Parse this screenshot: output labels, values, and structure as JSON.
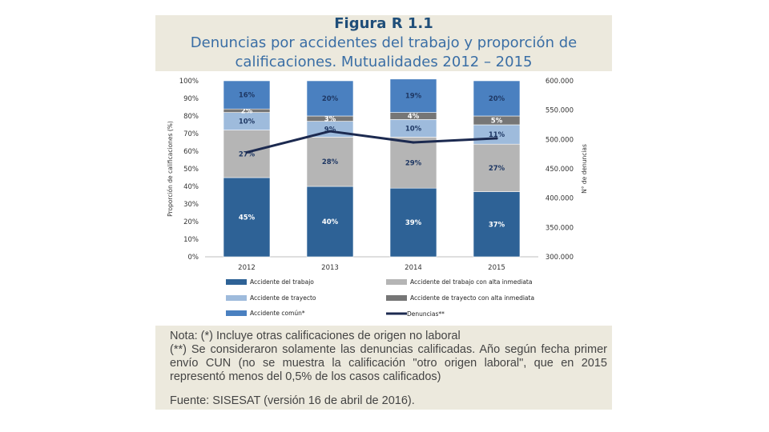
{
  "figure": {
    "label": "Figura R 1.1",
    "title": "Denuncias por accidentes del trabajo y proporción de calificaciones. Mutualidades 2012 – 2015"
  },
  "chart_data": {
    "type": "bar",
    "stacked": true,
    "categories": [
      "2012",
      "2013",
      "2014",
      "2015"
    ],
    "series": [
      {
        "name": "Accidente del trabajo",
        "color": "#2e6296",
        "values": [
          45,
          40,
          39,
          37
        ],
        "labels": [
          "45%",
          "40%",
          "39%",
          "37%"
        ]
      },
      {
        "name": "Accidente del trabajo con alta inmediata",
        "color": "#b5b5b5",
        "values": [
          27,
          28,
          29,
          27
        ],
        "labels": [
          "27%",
          "28%",
          "29%",
          "27%"
        ]
      },
      {
        "name": "Accidente de trayecto",
        "color": "#9ebbdc",
        "values": [
          10,
          9,
          10,
          11
        ],
        "labels": [
          "10%",
          "9%",
          "10%",
          "11%"
        ]
      },
      {
        "name": "Accidente de trayecto con alta inmediata",
        "color": "#767676",
        "values": [
          2,
          3,
          4,
          5
        ],
        "labels": [
          "2%",
          "3%",
          "4%",
          "5%"
        ]
      },
      {
        "name": "Accidente común*",
        "color": "#4a80c0",
        "values": [
          16,
          20,
          19,
          20
        ],
        "labels": [
          "16%",
          "20%",
          "19%",
          "20%"
        ]
      }
    ],
    "line_series": {
      "name": "Denuncias**",
      "color": "#1c2a50",
      "axis": "right",
      "values": [
        478000,
        514000,
        495000,
        502000
      ]
    },
    "ylabel": "Proporción de calificaciones (%)",
    "ylabel_right": "N° de denuncias",
    "ylim": [
      0,
      100
    ],
    "ylim_right": [
      300000,
      600000
    ],
    "yticks": [
      "0%",
      "10%",
      "20%",
      "30%",
      "40%",
      "50%",
      "60%",
      "70%",
      "80%",
      "90%",
      "100%"
    ],
    "yticks_right": [
      "300.000",
      "350.000",
      "400.000",
      "450.000",
      "500.000",
      "550.000",
      "600.000"
    ],
    "legend_position": "bottom"
  },
  "notes": {
    "line1": "Nota: (*) Incluye otras calificaciones de origen no laboral",
    "line2": "(**) Se consideraron solamente las denuncias calificadas. Año según fecha primer envío CUN (no se muestra la calificación \"otro origen laboral\", que en 2015 representó menos del 0,5% de los casos calificados)",
    "source": "Fuente: SISESAT (versión 16 de abril de 2016)."
  }
}
